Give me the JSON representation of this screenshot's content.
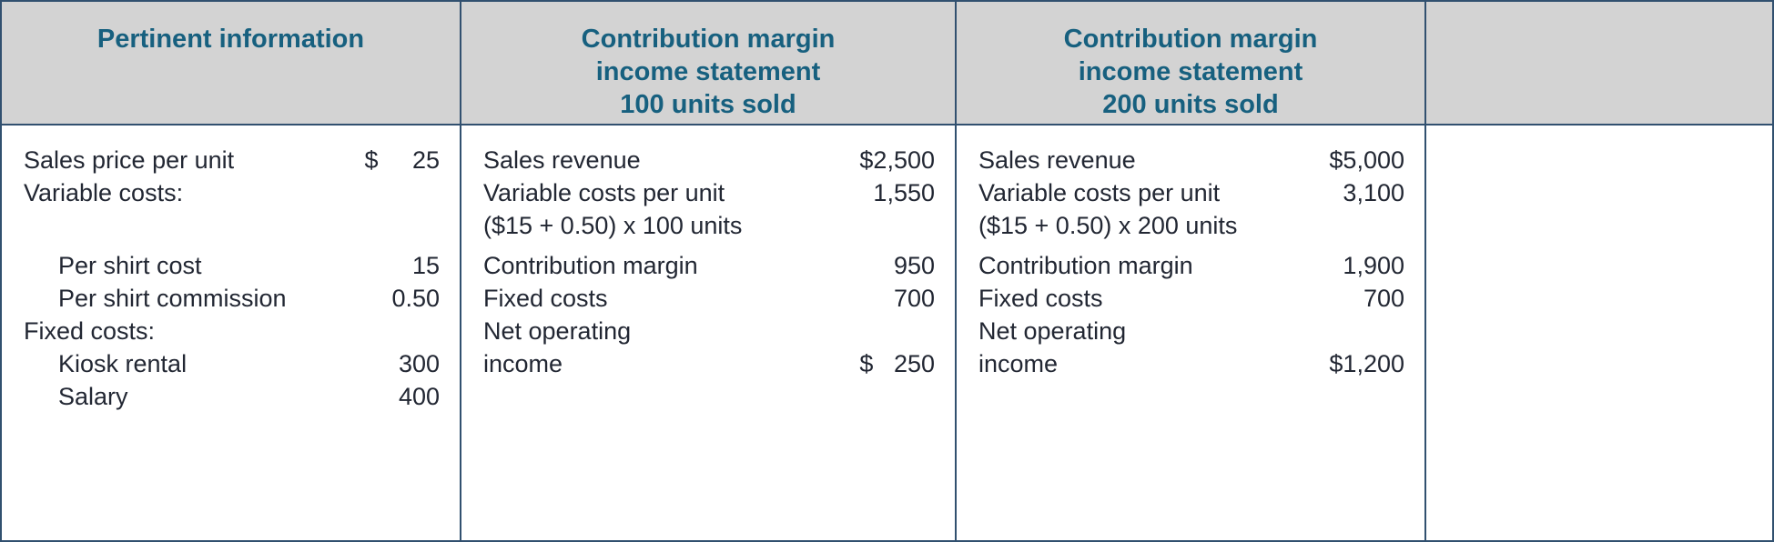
{
  "figure": {
    "title": "Comparison of contribution margin income statements",
    "colors": {
      "header_text": "#17607f",
      "header_background": "#d3d3d3",
      "body_text": "#222733",
      "border": "#31506f"
    },
    "columns": [
      {
        "header_lines": [
          "Pertinent information"
        ],
        "rows": [
          {
            "label": "Sales price per unit",
            "amount": "$     25"
          },
          {
            "label": "Variable costs:",
            "amount": ""
          },
          {
            "label": "",
            "amount": ""
          },
          {
            "label": "Per shirt cost",
            "amount": "15"
          },
          {
            "label": "Per shirt commission",
            "amount": "0.50"
          },
          {
            "label": "Fixed costs:",
            "amount": ""
          },
          {
            "label": "Kiosk rental",
            "amount": "300"
          },
          {
            "label": "Salary",
            "amount": "400"
          }
        ]
      },
      {
        "header_lines": [
          "Contribution margin",
          "income statement",
          "100 units sold"
        ],
        "rows": [
          {
            "label": "Sales revenue",
            "amount": "$2,500"
          },
          {
            "label": "Variable costs per unit",
            "amount": "1,550"
          },
          {
            "label": "($15 + 0.50) x 100 units",
            "amount": ""
          },
          {
            "label": "Contribution margin",
            "amount": "950"
          },
          {
            "label": "Fixed costs",
            "amount": "700"
          },
          {
            "label": "Net operating",
            "amount": ""
          },
          {
            "label": "income",
            "amount": "$   250"
          },
          {
            "label": "",
            "amount": ""
          }
        ]
      },
      {
        "header_lines": [
          "Contribution margin",
          "income statement",
          "200 units sold"
        ],
        "rows": [
          {
            "label": "Sales revenue",
            "amount": "$5,000"
          },
          {
            "label": "Variable costs per unit",
            "amount": "3,100"
          },
          {
            "label": "($15 + 0.50) x 200 units",
            "amount": ""
          },
          {
            "label": "Contribution margin",
            "amount": "1,900"
          },
          {
            "label": "Fixed costs",
            "amount": "700"
          },
          {
            "label": "Net operating",
            "amount": ""
          },
          {
            "label": "income",
            "amount": "$1,200"
          },
          {
            "label": "",
            "amount": ""
          }
        ]
      }
    ]
  }
}
